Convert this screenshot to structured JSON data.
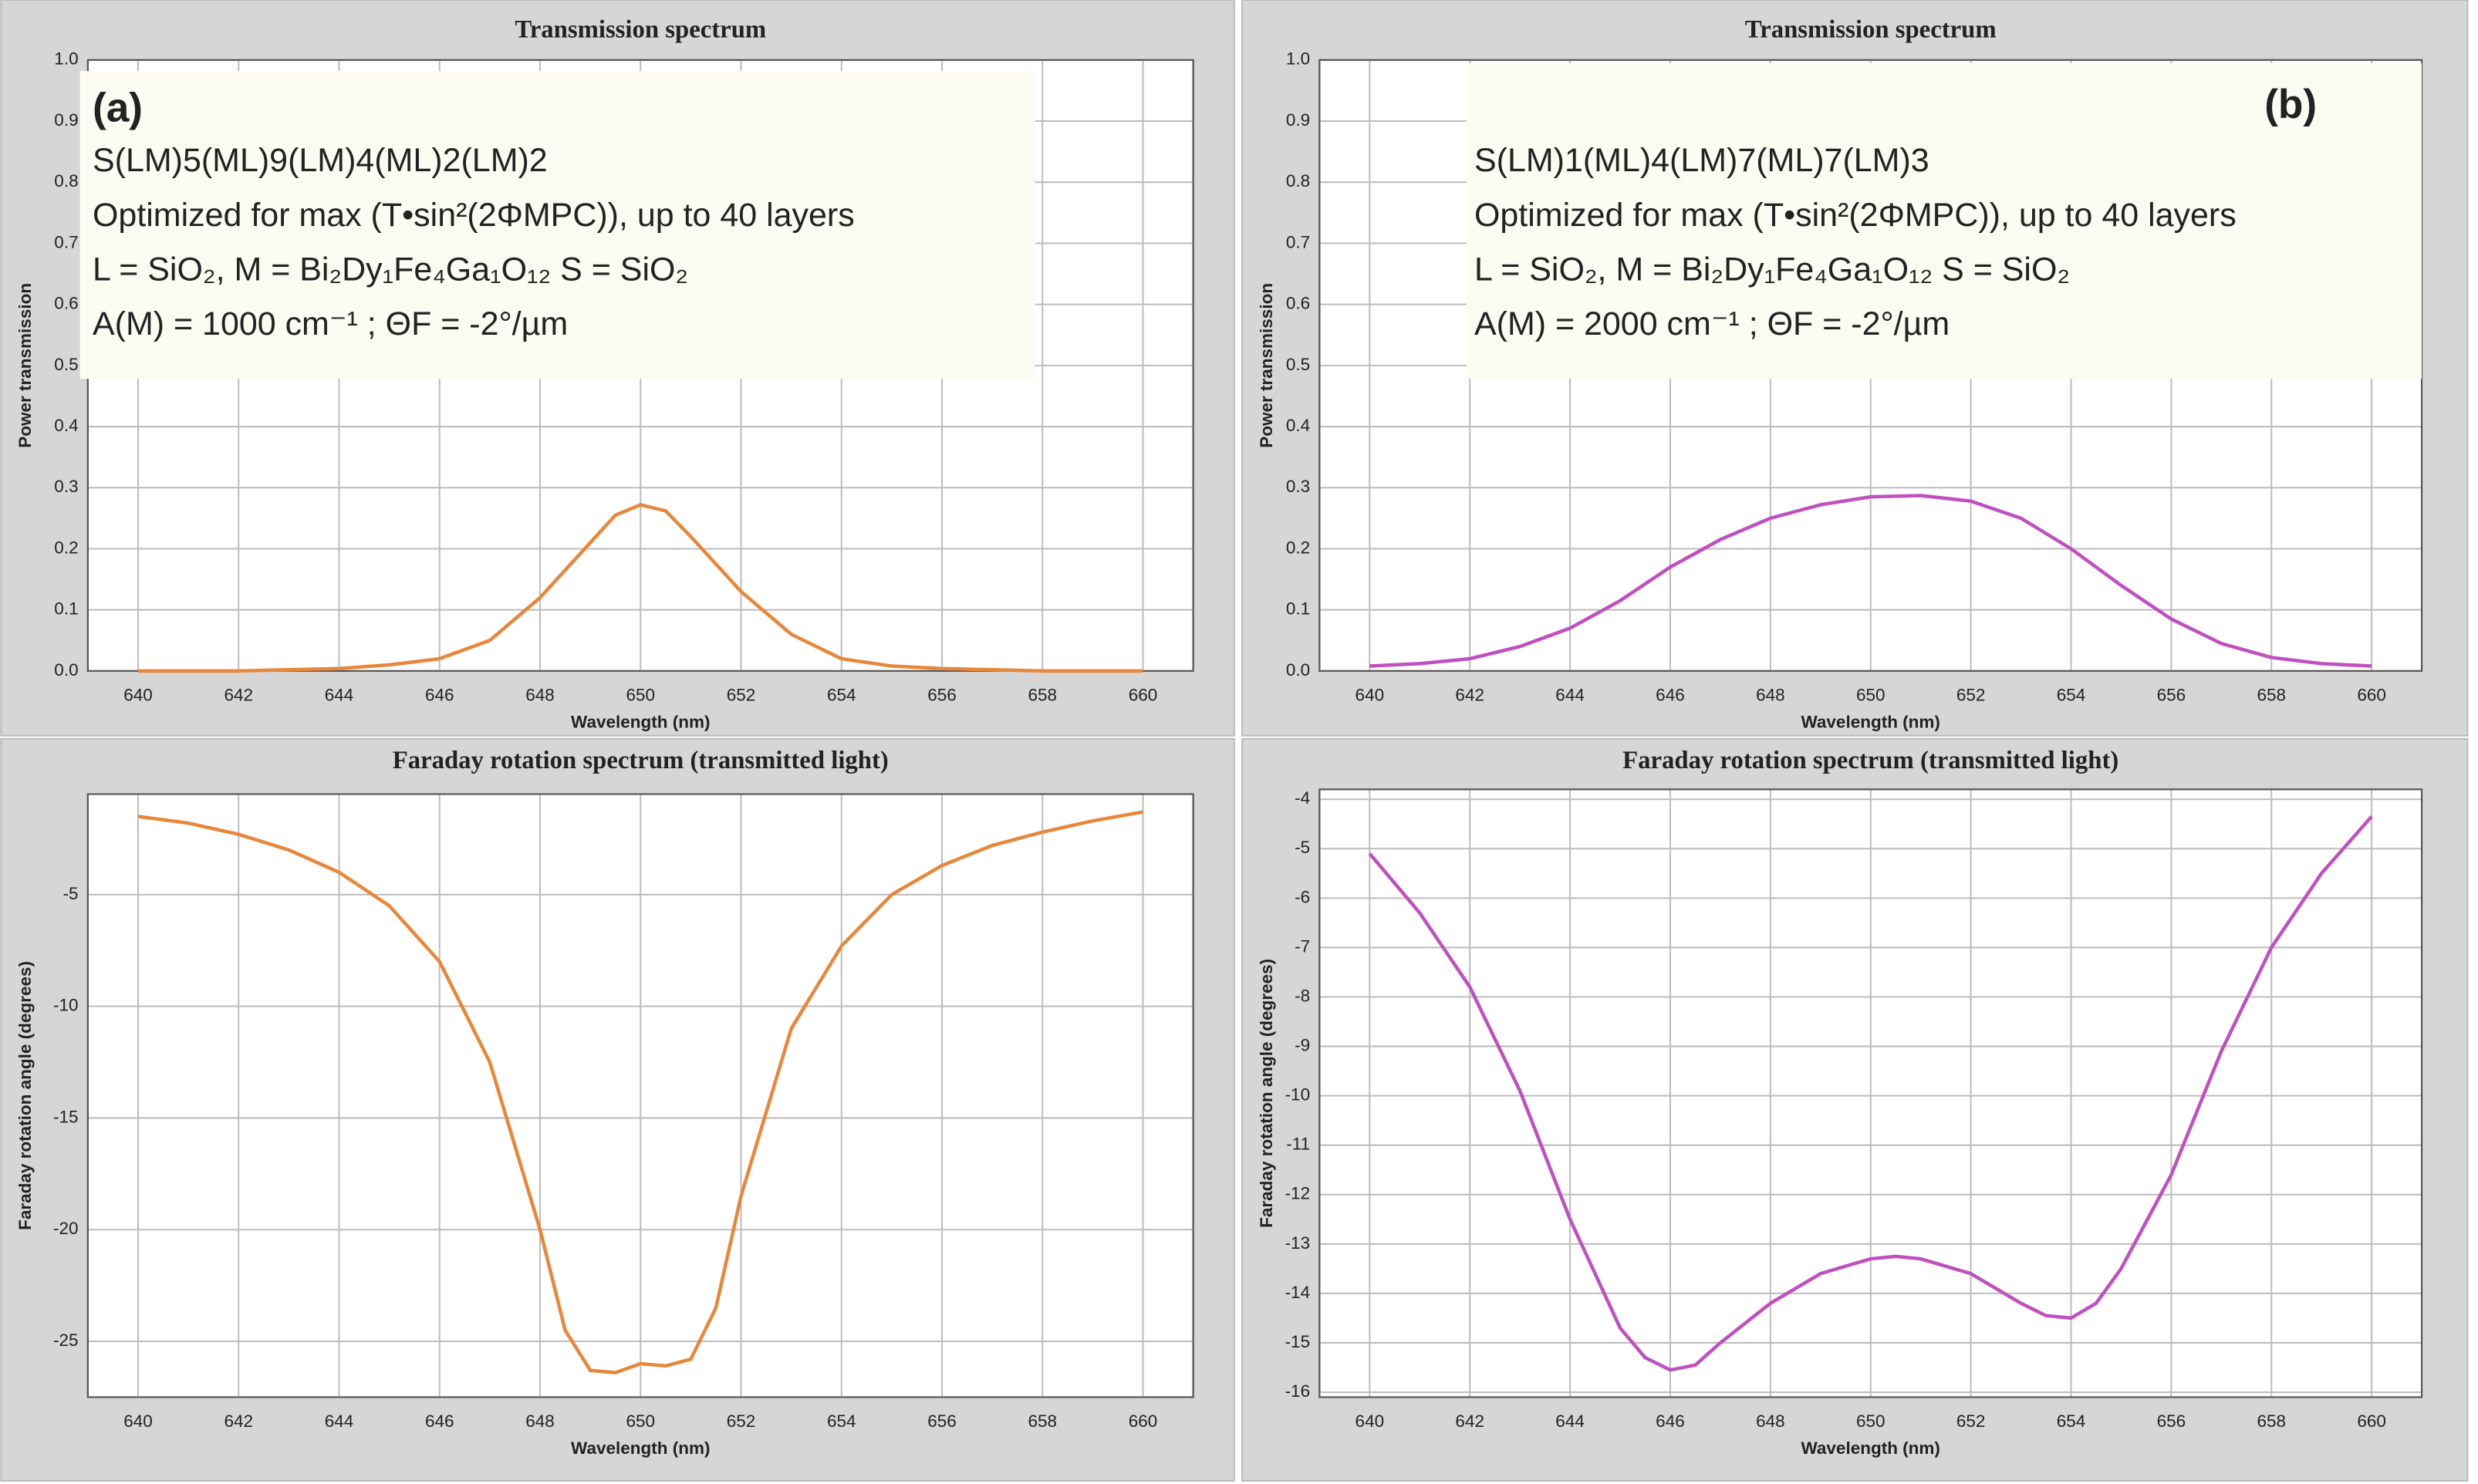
{
  "chart_data": [
    {
      "type": "line",
      "title": "Transmission spectrum",
      "xlabel": "Wavelength (nm)",
      "ylabel": "Power transmission",
      "panel_label": "(a)",
      "annotations": [
        "S(LM)5(ML)9(LM)4(ML)2(LM)2",
        "Optimized for max (T•sin²(2ΦMPC)), up to 40 layers",
        "L = SiO₂, M = Bi₂Dy₁Fe₄Ga₁O₁₂ S = SiO₂",
        "A(M) = 1000 cm⁻¹ ; ΘF = -2°/µm"
      ],
      "xlim": [
        639,
        661
      ],
      "xticks": [
        640,
        642,
        644,
        646,
        648,
        650,
        652,
        654,
        656,
        658,
        660
      ],
      "ylim": [
        0,
        1
      ],
      "yticks": [
        {
          "value": 0,
          "label": "0.0"
        },
        0.1,
        0.2,
        0.3,
        0.4,
        0.5,
        0.6,
        0.7,
        0.8,
        0.9,
        {
          "value": 1,
          "label": "1.0"
        }
      ],
      "grid": true,
      "x": [
        640,
        641,
        642,
        643,
        644,
        645,
        646,
        647,
        648,
        649,
        649.5,
        650,
        650.5,
        651,
        652,
        653,
        654,
        655,
        656,
        657,
        658,
        659,
        660
      ],
      "series": [
        {
          "color": "#e8873a",
          "values": [
            0,
            0,
            0,
            0.002,
            0.004,
            0.01,
            0.02,
            0.05,
            0.12,
            0.21,
            0.255,
            0.272,
            0.262,
            0.22,
            0.13,
            0.06,
            0.02,
            0.008,
            0.004,
            0.002,
            0,
            0,
            0
          ]
        }
      ]
    },
    {
      "type": "line",
      "title": "Transmission spectrum",
      "xlabel": "Wavelength (nm)",
      "ylabel": "Power transmission",
      "panel_label": "(b)",
      "annotations": [
        "S(LM)1(ML)4(LM)7(ML)7(LM)3",
        "Optimized for max (T•sin²(2ΦMPC)), up to 40 layers",
        "L = SiO₂, M = Bi₂Dy₁Fe₄Ga₁O₁₂ S = SiO₂",
        "A(M) = 2000 cm⁻¹ ; ΘF = -2°/µm"
      ],
      "xlim": [
        639,
        661
      ],
      "xticks": [
        640,
        642,
        644,
        646,
        648,
        650,
        652,
        654,
        656,
        658,
        660
      ],
      "ylim": [
        0,
        1
      ],
      "yticks": [
        {
          "value": 0,
          "label": "0.0"
        },
        0.1,
        0.2,
        0.3,
        0.4,
        0.5,
        0.6,
        0.7,
        0.8,
        0.9,
        {
          "value": 1,
          "label": "1.0"
        }
      ],
      "grid": true,
      "x": [
        640,
        641,
        642,
        643,
        644,
        645,
        646,
        647,
        648,
        649,
        650,
        651,
        652,
        653,
        654,
        655,
        656,
        657,
        658,
        659,
        660
      ],
      "series": [
        {
          "color": "#c04fc0",
          "values": [
            0.008,
            0.012,
            0.02,
            0.04,
            0.07,
            0.115,
            0.17,
            0.215,
            0.25,
            0.272,
            0.285,
            0.287,
            0.278,
            0.25,
            0.2,
            0.14,
            0.085,
            0.045,
            0.022,
            0.012,
            0.008
          ]
        }
      ]
    },
    {
      "type": "line",
      "title": "Faraday rotation spectrum (transmitted light)",
      "xlabel": "Wavelength (nm)",
      "ylabel": "Faraday rotation angle (degrees)",
      "xlim": [
        639,
        661
      ],
      "xticks": [
        640,
        642,
        644,
        646,
        648,
        650,
        652,
        654,
        656,
        658,
        660
      ],
      "ylim": [
        -27.5,
        -0.5
      ],
      "yticks": [
        -25,
        -20,
        -15,
        -10,
        -5
      ],
      "grid": true,
      "x": [
        640,
        641,
        642,
        643,
        644,
        645,
        646,
        647,
        648,
        648.5,
        649,
        649.5,
        650,
        650.5,
        651,
        651.5,
        652,
        653,
        654,
        655,
        656,
        657,
        658,
        659,
        660
      ],
      "series": [
        {
          "color": "#e8873a",
          "values": [
            -1.5,
            -1.8,
            -2.3,
            -3,
            -4,
            -5.5,
            -8,
            -12.5,
            -20,
            -24.5,
            -26.3,
            -26.4,
            -26,
            -26.1,
            -25.8,
            -23.5,
            -18.5,
            -11,
            -7.3,
            -5,
            -3.7,
            -2.8,
            -2.2,
            -1.7,
            -1.3
          ]
        }
      ]
    },
    {
      "type": "line",
      "title": "Faraday rotation spectrum (transmitted light)",
      "xlabel": "Wavelength (nm)",
      "ylabel": "Faraday rotation angle (degrees)",
      "xlim": [
        639,
        661
      ],
      "xticks": [
        640,
        642,
        644,
        646,
        648,
        650,
        652,
        654,
        656,
        658,
        660
      ],
      "ylim": [
        -16.1,
        -3.8
      ],
      "yticks": [
        -16,
        -15,
        -14,
        -13,
        -12,
        -11,
        -10,
        -9,
        -8,
        -7,
        -6,
        -5,
        -4
      ],
      "grid": true,
      "x": [
        640,
        641,
        642,
        643,
        644,
        645,
        645.5,
        646,
        646.5,
        647,
        648,
        649,
        650,
        650.5,
        651,
        652,
        653,
        653.5,
        654,
        654.5,
        655,
        656,
        657,
        658,
        659,
        660
      ],
      "series": [
        {
          "color": "#c04fc0",
          "values": [
            -5.1,
            -6.3,
            -7.8,
            -9.9,
            -12.5,
            -14.7,
            -15.3,
            -15.55,
            -15.45,
            -15,
            -14.2,
            -13.6,
            -13.3,
            -13.25,
            -13.3,
            -13.6,
            -14.2,
            -14.45,
            -14.5,
            -14.2,
            -13.5,
            -11.6,
            -9.1,
            -7,
            -5.5,
            -4.35
          ]
        }
      ]
    }
  ]
}
